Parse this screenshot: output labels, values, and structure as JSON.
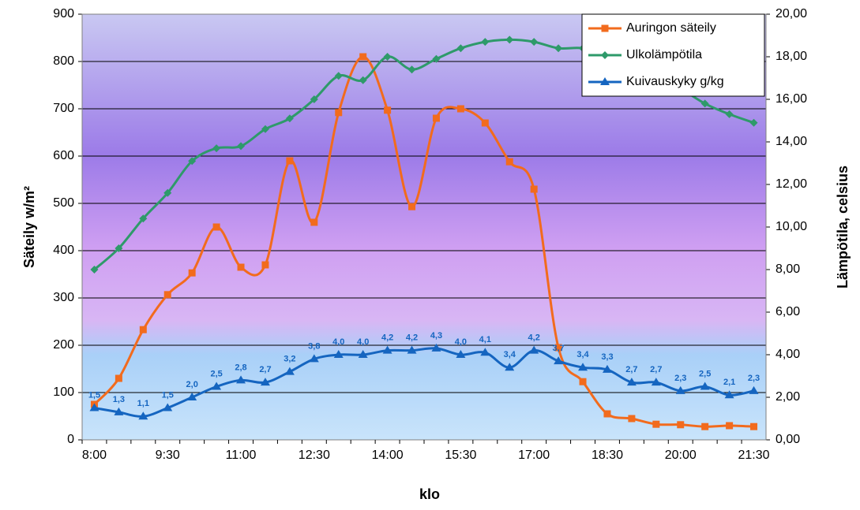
{
  "chart_data": {
    "type": "line",
    "x_label": "klo",
    "y_label": "Säteily w/m²",
    "y2_label": "Lämpötila, celsius",
    "categories": [
      "8:00",
      null,
      null,
      "9:30",
      null,
      null,
      "11:00",
      null,
      null,
      "12:30",
      null,
      null,
      "14:00",
      null,
      null,
      "15:30",
      null,
      null,
      "17:00",
      null,
      null,
      "18:30",
      null,
      null,
      "20:00",
      null,
      null,
      "21:30"
    ],
    "ylim": [
      0,
      900
    ],
    "yticks": [
      0,
      100,
      200,
      300,
      400,
      500,
      600,
      700,
      800,
      900
    ],
    "y2lim": [
      0,
      20
    ],
    "y2ticks": [
      {
        "value": 0,
        "label": "0,00"
      },
      {
        "value": 2,
        "label": "2,00"
      },
      {
        "value": 4,
        "label": "4,00"
      },
      {
        "value": 6,
        "label": "6,00"
      },
      {
        "value": 8,
        "label": "8,00"
      },
      {
        "value": 10,
        "label": "10,00"
      },
      {
        "value": 12,
        "label": "12,00"
      },
      {
        "value": 14,
        "label": "14,00"
      },
      {
        "value": 16,
        "label": "16,00"
      },
      {
        "value": 18,
        "label": "18,00"
      },
      {
        "value": 20,
        "label": "20,00"
      }
    ],
    "grid": true,
    "legend": "upper right",
    "series": [
      {
        "name": "Auringon säteily",
        "color": "#f26b1d",
        "values": [
          75,
          130,
          233,
          307,
          353,
          450,
          365,
          370,
          590,
          460,
          692,
          810,
          697,
          493,
          680,
          700,
          670,
          588,
          530,
          195,
          123,
          55,
          45,
          33,
          32,
          28,
          30,
          28
        ]
      },
      {
        "name": "Ulkolämpötila",
        "color": "#2e9a6a",
        "axis": "y2",
        "values": [
          8.0,
          9.0,
          10.4,
          11.6,
          13.1,
          13.7,
          13.8,
          14.6,
          15.1,
          16.0,
          17.1,
          16.9,
          18.0,
          17.4,
          17.9,
          18.4,
          18.7,
          18.8,
          18.7,
          18.4,
          18.4,
          18.0,
          17.6,
          17.0,
          16.5,
          15.8,
          15.3,
          14.9
        ]
      },
      {
        "name": "Kuivauskyky g/kg",
        "color": "#1565c0",
        "axis": "y2",
        "values": [
          1.5,
          1.3,
          1.1,
          1.5,
          2.0,
          2.5,
          2.8,
          2.7,
          3.2,
          3.8,
          4.0,
          4.0,
          4.2,
          4.2,
          4.3,
          4.0,
          4.1,
          3.4,
          4.2,
          3.7,
          3.4,
          3.3,
          2.7,
          2.7,
          2.3,
          2.5,
          2.1,
          2.3
        ],
        "value_labels": [
          "1,5",
          "1,3",
          "1,1",
          "1,5",
          "2,0",
          "2,5",
          "2,8",
          "2,7",
          "3,2",
          "3,8",
          "4,0",
          "4,0",
          "4,2",
          "4,2",
          "4,3",
          "4,0",
          "4,1",
          "3,4",
          "4,2",
          "3,7",
          "3,4",
          "3,3",
          "2,7",
          "2,7",
          "2,3",
          "2,5",
          "2,1",
          "2,3"
        ]
      }
    ]
  }
}
